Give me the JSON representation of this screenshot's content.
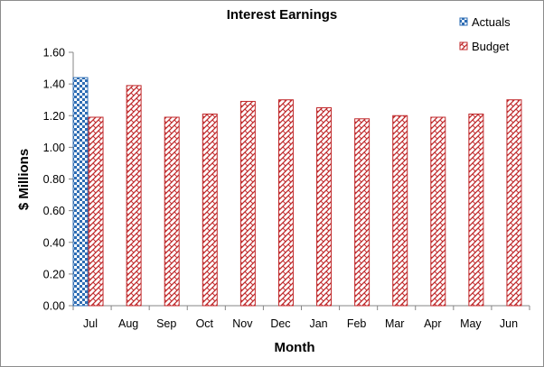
{
  "chart_data": {
    "type": "bar",
    "title": "Interest Earnings",
    "xlabel": "Month",
    "ylabel": "$ Millions",
    "ylim": [
      0,
      1.6
    ],
    "yticks": [
      "0.00",
      "0.20",
      "0.40",
      "0.60",
      "0.80",
      "1.00",
      "1.20",
      "1.40",
      "1.60"
    ],
    "grid": false,
    "legend_position": "top-right",
    "categories": [
      "Jul",
      "Aug",
      "Sep",
      "Oct",
      "Nov",
      "Dec",
      "Jan",
      "Feb",
      "Mar",
      "Apr",
      "May",
      "Jun"
    ],
    "series": [
      {
        "name": "Actuals",
        "color": "#2e6db4",
        "pattern": "checkerboard",
        "values": [
          1.44,
          null,
          null,
          null,
          null,
          null,
          null,
          null,
          null,
          null,
          null,
          null
        ]
      },
      {
        "name": "Budget",
        "color": "#c0292b",
        "pattern": "weave",
        "values": [
          1.19,
          1.39,
          1.19,
          1.21,
          1.29,
          1.3,
          1.25,
          1.18,
          1.2,
          1.19,
          1.21,
          1.3
        ]
      }
    ]
  }
}
